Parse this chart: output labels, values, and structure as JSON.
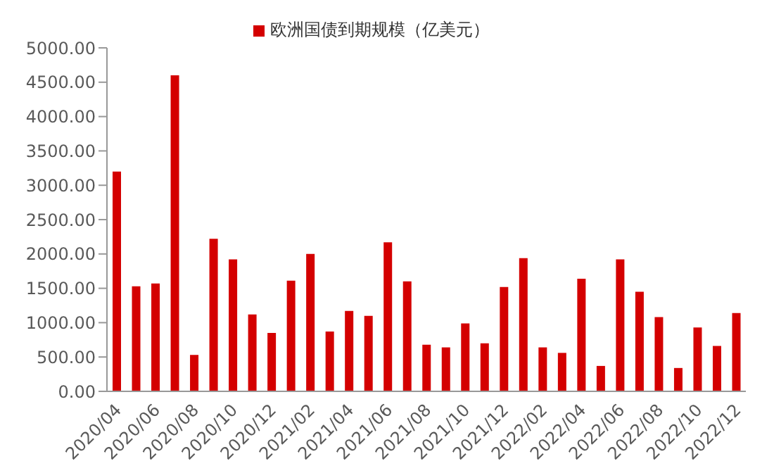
{
  "chart_data": {
    "type": "bar",
    "categories": [
      "2020/04",
      null,
      "2020/06",
      null,
      "2020/08",
      null,
      "2020/10",
      null,
      "2020/12",
      null,
      "2021/02",
      null,
      "2021/04",
      null,
      "2021/06",
      null,
      "2021/08",
      null,
      "2021/10",
      null,
      "2021/12",
      null,
      "2022/02",
      null,
      "2022/04",
      null,
      "2022/06",
      null,
      "2022/08",
      null,
      "2022/10",
      null,
      "2022/12"
    ],
    "series": [
      {
        "name": "欧洲国债到期规模（亿美元）",
        "color": "#d40000",
        "values": [
          3200,
          1530,
          1570,
          4600,
          530,
          2220,
          1920,
          1120,
          850,
          1610,
          2000,
          870,
          1170,
          1100,
          2170,
          1600,
          680,
          640,
          990,
          700,
          1520,
          1940,
          640,
          560,
          1640,
          370,
          1920,
          1450,
          1080,
          340,
          930,
          660,
          1140
        ]
      }
    ],
    "ylim": [
      0,
      5000
    ],
    "yticks": [
      {
        "value": 0,
        "label": "0.00"
      },
      {
        "value": 500,
        "label": "500.00"
      },
      {
        "value": 1000,
        "label": "1000.00"
      },
      {
        "value": 1500,
        "label": "1500.00"
      },
      {
        "value": 2000,
        "label": "2000.00"
      },
      {
        "value": 2500,
        "label": "2500.00"
      },
      {
        "value": 3000,
        "label": "3000.00"
      },
      {
        "value": 3500,
        "label": "3500.00"
      },
      {
        "value": 4000,
        "label": "4000.00"
      },
      {
        "value": 4500,
        "label": "4500.00"
      },
      {
        "value": 5000,
        "label": "5000.00"
      }
    ],
    "legend": "top",
    "grid": false
  }
}
